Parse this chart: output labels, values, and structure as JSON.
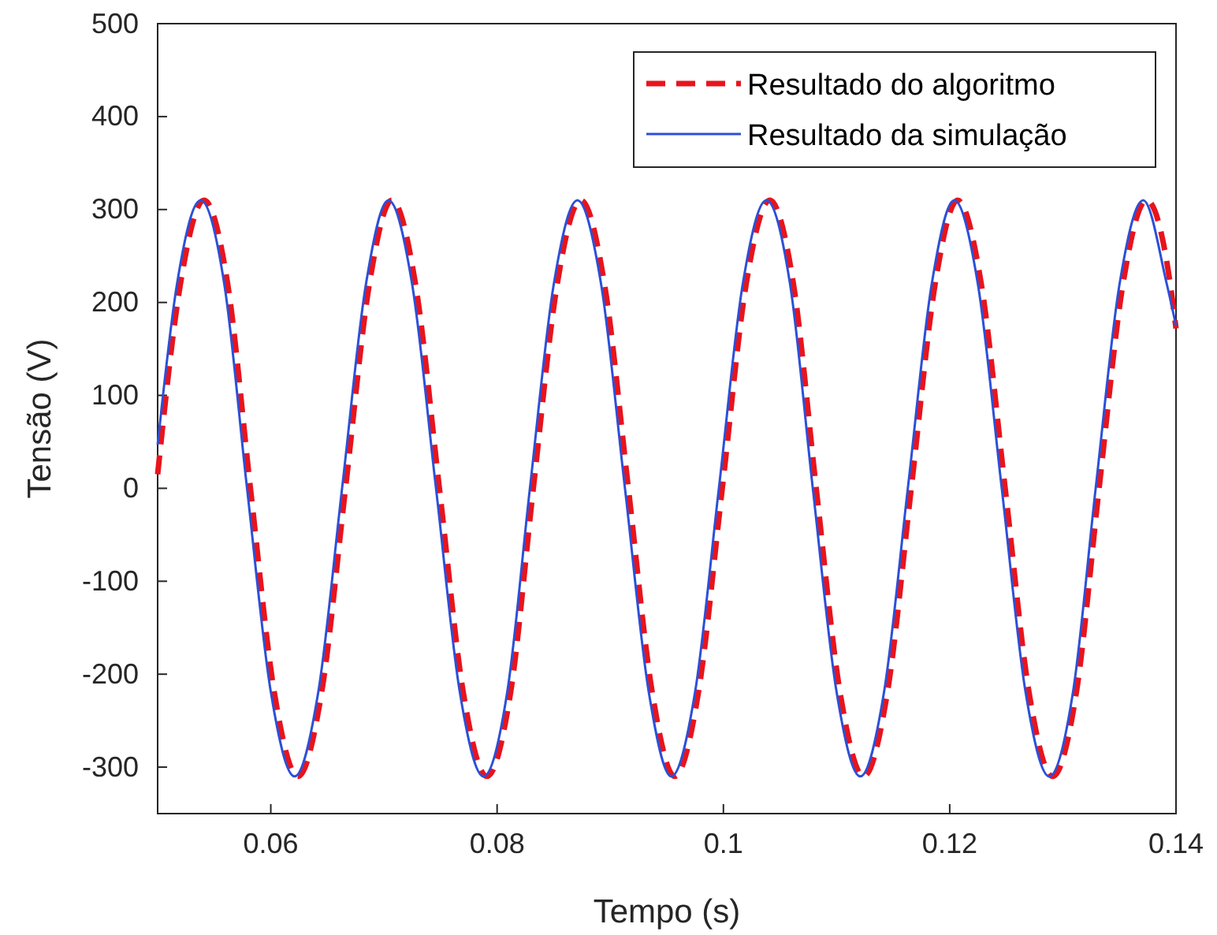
{
  "chart_data": {
    "type": "line",
    "xlabel": "Tempo (s)",
    "ylabel": "Tensão (V)",
    "xlim": [
      0.05,
      0.14
    ],
    "ylim": [
      -350,
      500
    ],
    "xticks": [
      0.06,
      0.08,
      {
        "value": 0.1,
        "label": "0.1"
      },
      0.12,
      0.14
    ],
    "yticks": [
      -300,
      -200,
      -100,
      0,
      100,
      200,
      300,
      400,
      500
    ],
    "grid": false,
    "legend": "top right",
    "marker": "none",
    "series": [
      {
        "name": "Resultado do algoritmo",
        "color": "#e8141c",
        "line_style": "dashed",
        "x": [
          0.05,
          0.052,
          0.0541,
          0.0562,
          0.0582,
          0.0603,
          0.0624,
          0.0645,
          0.0666,
          0.0687,
          0.0707,
          0.0728,
          0.0749,
          0.077,
          0.0791,
          0.0812,
          0.0832,
          0.0853,
          0.0874,
          0.0895,
          0.0916,
          0.0937,
          0.0957,
          0.0978,
          0.0999,
          0.102,
          0.1041,
          0.1062,
          0.1082,
          0.1103,
          0.1124,
          0.1145,
          0.1166,
          0.1187,
          0.1207,
          0.1228,
          0.1249,
          0.127,
          0.1291,
          0.1312,
          0.1332,
          0.1353,
          0.1374,
          0.1395,
          0.14
        ],
        "values": [
          15,
          219,
          310,
          219,
          0,
          -219,
          -310,
          -219,
          0,
          219,
          310,
          219,
          0,
          -219,
          -310,
          -219,
          0,
          219,
          310,
          219,
          0,
          -219,
          -310,
          -219,
          0,
          219,
          310,
          219,
          0,
          -219,
          -310,
          -219,
          0,
          219,
          310,
          219,
          0,
          -219,
          -310,
          -219,
          0,
          219,
          310,
          219,
          172
        ]
      },
      {
        "name": "Resultado da simulação",
        "color": "#2b50d8",
        "line_style": "solid",
        "x": [
          0.05,
          0.0517,
          0.0538,
          0.0559,
          0.0579,
          0.06,
          0.0621,
          0.0642,
          0.0663,
          0.0684,
          0.0704,
          0.0725,
          0.0746,
          0.0767,
          0.0788,
          0.0809,
          0.0829,
          0.085,
          0.0871,
          0.0892,
          0.0913,
          0.0934,
          0.0954,
          0.0975,
          0.0996,
          0.1017,
          0.1038,
          0.1059,
          0.1079,
          0.11,
          0.1121,
          0.1142,
          0.1163,
          0.1184,
          0.1204,
          0.1225,
          0.1246,
          0.1267,
          0.1288,
          0.1309,
          0.1329,
          0.135,
          0.1371,
          0.1392,
          0.14
        ],
        "values": [
          47,
          219,
          310,
          219,
          0,
          -219,
          -310,
          -219,
          0,
          219,
          310,
          219,
          0,
          -219,
          -310,
          -219,
          0,
          219,
          310,
          219,
          0,
          -219,
          -310,
          -219,
          0,
          219,
          310,
          219,
          0,
          -219,
          -310,
          -219,
          0,
          219,
          310,
          219,
          0,
          -219,
          -310,
          -219,
          0,
          219,
          310,
          219,
          175
        ]
      }
    ]
  }
}
